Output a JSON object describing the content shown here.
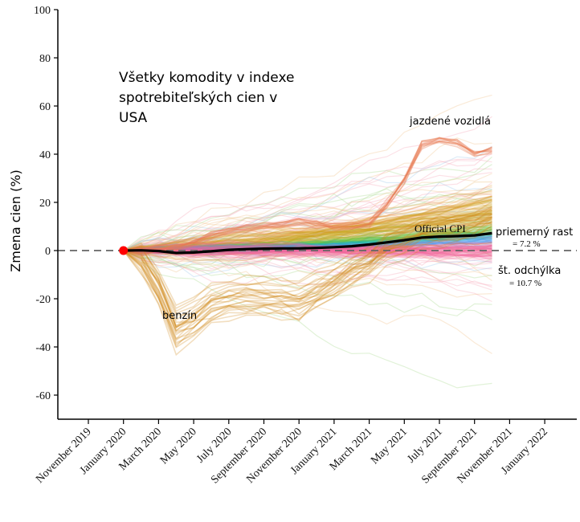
{
  "chart_data": {
    "type": "line",
    "title": [
      "Všetky komodity v indexe",
      "spotrebiteľských cien v",
      "USA"
    ],
    "ylabel": "Zmena cien (%)",
    "xlabel": "",
    "ylim": [
      -70,
      100
    ],
    "yticks": [
      100,
      80,
      60,
      40,
      20,
      0,
      -20,
      -40,
      -60
    ],
    "xticks": [
      "November 2019",
      "January 2020",
      "March 2020",
      "May 2020",
      "July 2020",
      "September 2020",
      "November 2020",
      "January 2021",
      "March 2021",
      "May 2021",
      "July 2021",
      "September 2021",
      "November 2021",
      "January 2022"
    ],
    "baseline": 0,
    "start_marker": {
      "x": "January 2020",
      "y": 0,
      "color": "#ff0000"
    },
    "official_cpi": {
      "name": "Official CPI",
      "color": "#000000",
      "x": [
        "January 2020",
        "February 2020",
        "March 2020",
        "April 2020",
        "May 2020",
        "June 2020",
        "July 2020",
        "August 2020",
        "September 2020",
        "October 2020",
        "November 2020",
        "December 2020",
        "January 2021",
        "February 2021",
        "March 2021",
        "April 2021",
        "May 2021",
        "June 2021",
        "July 2021",
        "August 2021",
        "September 2021",
        "October 2021"
      ],
      "values": [
        0,
        0.1,
        -0.2,
        -1,
        -0.8,
        -0.3,
        0.3,
        0.6,
        0.8,
        0.9,
        0.9,
        1.1,
        1.4,
        1.8,
        2.5,
        3.4,
        4.3,
        5.4,
        5.8,
        6.0,
        6.3,
        7.2
      ]
    },
    "used_vehicles": {
      "name": "jazdené vozidlá",
      "color": "#e87a52",
      "values": [
        0,
        0.5,
        1,
        2,
        4,
        7,
        9,
        10,
        11,
        12,
        13,
        12,
        11,
        11,
        12,
        20,
        30,
        45,
        47,
        46,
        41,
        43
      ]
    },
    "gasoline": {
      "name": "benzín",
      "color": "#d08a18",
      "values": [
        0,
        -3,
        -15,
        -32,
        -28,
        -22,
        -20,
        -19,
        -19,
        -20,
        -21,
        -17,
        -13,
        -8,
        -4,
        2,
        5,
        8,
        9,
        10,
        11,
        14
      ]
    },
    "annotations": {
      "official_cpi_label": "Official CPI",
      "mean_growth_label": "priemerný rast",
      "mean_growth_value": "= 7.2 %",
      "std_label": "št. odchýlka",
      "std_value": "= 10.7 %",
      "used_vehicles_label": "jazdené vozidlá",
      "gasoline_label": "benzín"
    },
    "grid": false,
    "colors": {
      "baseline": "#666666",
      "band_pink": "#f2659a",
      "band_blue": "#4b9df2",
      "band_cyan": "#19b5b5",
      "band_green": "#6cc23a",
      "band_yellow": "#c9a818",
      "band_orange": "#e0901e",
      "faint_pink": "#f5a7b8",
      "faint_blue": "#9fc8ea",
      "faint_green": "#a9d98f",
      "faint_orange": "#f2c28c"
    }
  }
}
